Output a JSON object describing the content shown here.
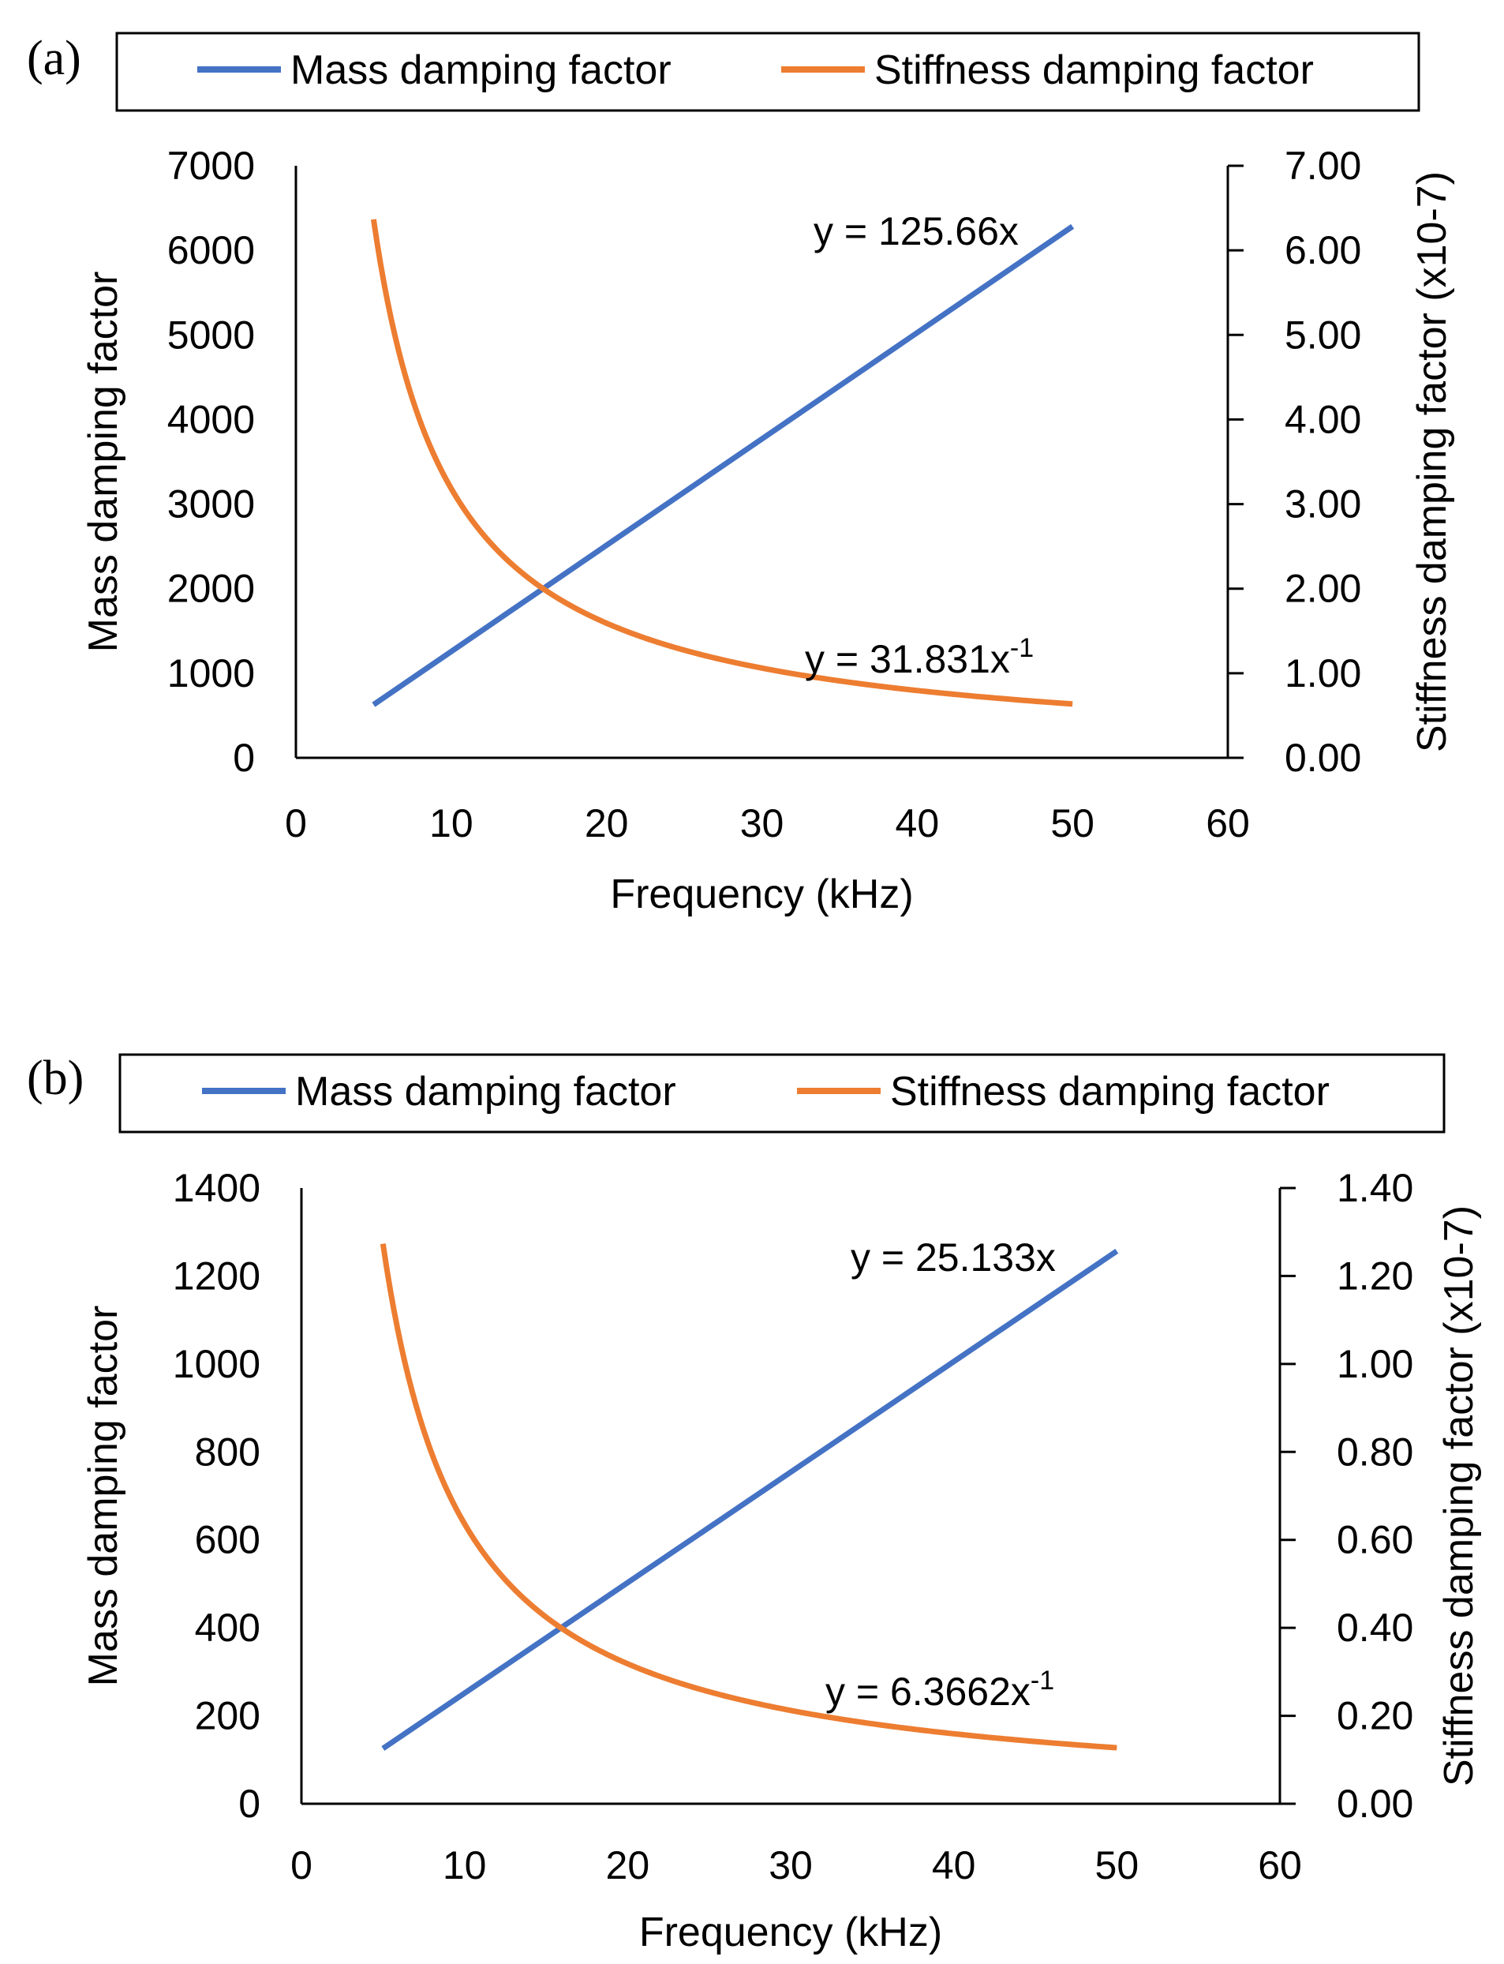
{
  "chart_data": [
    {
      "panel_label": "(a)",
      "type": "line",
      "legend": [
        {
          "name": "Mass damping factor",
          "color": "#4472C4"
        },
        {
          "name": "Stiffness damping factor",
          "color": "#ED7D31"
        }
      ],
      "xlabel": "Frequency (kHz)",
      "ylabel_left": "Mass damping factor",
      "ylabel_right": "Stiffness damping factor (x10-7)",
      "xlim": [
        0,
        60
      ],
      "x_ticks": [
        "0",
        "10",
        "20",
        "30",
        "40",
        "50",
        "60"
      ],
      "ylim_left": [
        0,
        7000
      ],
      "y_ticks_left": [
        "0",
        "1000",
        "2000",
        "3000",
        "4000",
        "5000",
        "6000",
        "7000"
      ],
      "ylim_right": [
        0,
        7
      ],
      "y_ticks_right": [
        "0.00",
        "1.00",
        "2.00",
        "3.00",
        "4.00",
        "5.00",
        "6.00",
        "7.00"
      ],
      "series": [
        {
          "name": "Mass damping factor",
          "axis": "left",
          "function": "linear",
          "coef": 125.66,
          "x_range": [
            5,
            50
          ],
          "values_at_range": [
            628.3,
            6283
          ]
        },
        {
          "name": "Stiffness damping factor",
          "axis": "right",
          "function": "inverse",
          "coef": 31.831,
          "x_range": [
            5,
            50
          ],
          "values_at_range": [
            6.366,
            0.637
          ]
        }
      ],
      "annotations": {
        "linear_eq": "y = 125.66x",
        "inverse_eq_main": "y = 31.831x",
        "inverse_eq_sup": "-1"
      }
    },
    {
      "panel_label": "(b)",
      "type": "line",
      "legend": [
        {
          "name": "Mass damping factor",
          "color": "#4472C4"
        },
        {
          "name": "Stiffness damping factor",
          "color": "#ED7D31"
        }
      ],
      "xlabel": "Frequency (kHz)",
      "ylabel_left": "Mass damping factor",
      "ylabel_right": "Stiffness damping factor (x10-7)",
      "xlim": [
        0,
        60
      ],
      "x_ticks": [
        "0",
        "10",
        "20",
        "30",
        "40",
        "50",
        "60"
      ],
      "ylim_left": [
        0,
        1400
      ],
      "y_ticks_left": [
        "0",
        "200",
        "400",
        "600",
        "800",
        "1000",
        "1200",
        "1400"
      ],
      "ylim_right": [
        0,
        1.4
      ],
      "y_ticks_right": [
        "0.00",
        "0.20",
        "0.40",
        "0.60",
        "0.80",
        "1.00",
        "1.20",
        "1.40"
      ],
      "series": [
        {
          "name": "Mass damping factor",
          "axis": "left",
          "function": "linear",
          "coef": 25.133,
          "x_range": [
            5,
            50
          ],
          "values_at_range": [
            125.7,
            1256.7
          ]
        },
        {
          "name": "Stiffness damping factor",
          "axis": "right",
          "function": "inverse",
          "coef": 6.3662,
          "x_range": [
            5,
            50
          ],
          "values_at_range": [
            1.273,
            0.127
          ]
        }
      ],
      "annotations": {
        "linear_eq": "y = 25.133x",
        "inverse_eq_main": "y = 6.3662x",
        "inverse_eq_sup": "-1"
      }
    }
  ]
}
